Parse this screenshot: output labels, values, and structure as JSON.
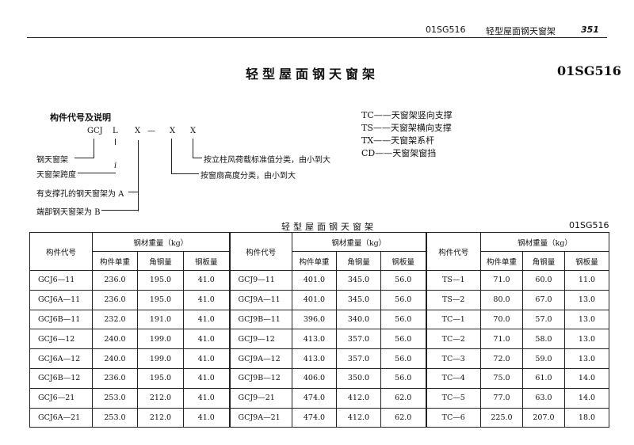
{
  "running_header": {
    "doc_code": "01SG516",
    "section_title": "轻型屋面钢天窗架",
    "page_number": "351"
  },
  "page_title": "轻型屋面钢天窗架",
  "page_code": "01SG516",
  "designation": {
    "heading": "构件代号及说明",
    "code_parts": [
      "GCJ",
      "L",
      "X",
      "—",
      "X",
      "X"
    ],
    "span_mark": "i",
    "labels": {
      "steel_skylight_frame": "钢天窗架",
      "span": "天窗架跨度",
      "type_a": "有支撑孔的钢天窗架为 A",
      "type_b": "端部钢天窗架为 B",
      "wind_load": "按立柱风荷载标准值分类，由小到大",
      "sash_height": "按窗扇高度分类，由小到大"
    }
  },
  "legend": [
    {
      "code": "TC",
      "desc": "天窗架竖向支撑"
    },
    {
      "code": "TS",
      "desc": "天窗架横向支撑"
    },
    {
      "code": "TX",
      "desc": "天窗架系杆"
    },
    {
      "code": "CD",
      "desc": "天窗架窗挡"
    }
  ],
  "table": {
    "caption": "轻型屋面钢天窗架",
    "code": "01SG516",
    "headers": {
      "member": "构件代号",
      "weight_group": "钢材重量（kg）",
      "unit_weight": "构件单重",
      "angle": "角钢量",
      "plate": "钢板量"
    },
    "groups": [
      {
        "rows": [
          [
            "GCJ6—11",
            "236.0",
            "195.0",
            "41.0"
          ],
          [
            "GCJ6A—11",
            "236.0",
            "195.0",
            "41.0"
          ],
          [
            "GCJ6B—11",
            "232.0",
            "191.0",
            "41.0"
          ],
          [
            "GCJ6—12",
            "240.0",
            "199.0",
            "41.0"
          ],
          [
            "GCJ6A—12",
            "240.0",
            "199.0",
            "41.0"
          ],
          [
            "GCJ6B—12",
            "236.0",
            "195.0",
            "41.0"
          ],
          [
            "GCJ6—21",
            "253.0",
            "212.0",
            "41.0"
          ],
          [
            "GCJ6A—21",
            "253.0",
            "212.0",
            "41.0"
          ]
        ]
      },
      {
        "rows": [
          [
            "GCJ9—11",
            "401.0",
            "345.0",
            "56.0"
          ],
          [
            "GCJ9A—11",
            "401.0",
            "345.0",
            "56.0"
          ],
          [
            "GCJ9B—11",
            "396.0",
            "340.0",
            "56.0"
          ],
          [
            "GCJ9—12",
            "413.0",
            "357.0",
            "56.0"
          ],
          [
            "GCJ9A—12",
            "413.0",
            "357.0",
            "56.0"
          ],
          [
            "GCJ9B—12",
            "406.0",
            "350.0",
            "56.0"
          ],
          [
            "GCJ9—21",
            "474.0",
            "412.0",
            "62.0"
          ],
          [
            "GCJ9A—21",
            "474.0",
            "412.0",
            "62.0"
          ]
        ]
      },
      {
        "rows": [
          [
            "TS—1",
            "71.0",
            "60.0",
            "11.0"
          ],
          [
            "TS—2",
            "80.0",
            "67.0",
            "13.0"
          ],
          [
            "TC—1",
            "70.0",
            "57.0",
            "13.0"
          ],
          [
            "TC—2",
            "71.0",
            "58.0",
            "13.0"
          ],
          [
            "TC—3",
            "72.0",
            "59.0",
            "13.0"
          ],
          [
            "TC—4",
            "75.0",
            "61.0",
            "14.0"
          ],
          [
            "TC—5",
            "77.0",
            "63.0",
            "14.0"
          ],
          [
            "TC—6",
            "225.0",
            "207.0",
            "18.0"
          ]
        ]
      }
    ]
  }
}
